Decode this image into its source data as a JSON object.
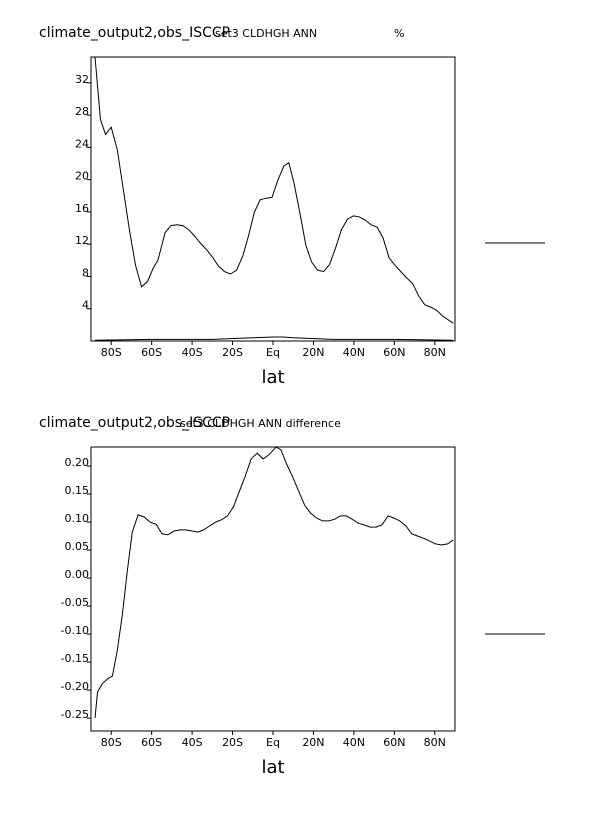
{
  "chart_data": [
    {
      "type": "line",
      "title": "climate_output2,obs_ISCCP",
      "subtitle": "set3 CLDHGH ANN",
      "units": "%",
      "x_label": "lat",
      "xlim": [
        -90,
        90
      ],
      "xticks": [
        {
          "value": -80,
          "label": "80S"
        },
        {
          "value": -60,
          "label": "60S"
        },
        {
          "value": -40,
          "label": "40S"
        },
        {
          "value": -20,
          "label": "20S"
        },
        {
          "value": 0,
          "label": "Eq"
        },
        {
          "value": 20,
          "label": "20N"
        },
        {
          "value": 40,
          "label": "40N"
        },
        {
          "value": 60,
          "label": "60N"
        },
        {
          "value": 80,
          "label": "80N"
        }
      ],
      "ylim": [
        0,
        35.2
      ],
      "yticks": [
        4,
        8,
        12,
        16,
        20,
        24,
        28,
        32
      ],
      "series": [
        {
          "color": "#000000",
          "x": [
            -88,
            -85.3,
            -82.8,
            -80,
            -77,
            -74,
            -71,
            -68,
            -65,
            -62,
            -59.3,
            -56.9,
            -53.4,
            -50.5,
            -47.5,
            -44.6,
            -41.7,
            -38.7,
            -35.8,
            -32.8,
            -29.9,
            -27,
            -24,
            -21,
            -18,
            -15,
            -12,
            -9.3,
            -6.4,
            -3.4,
            -0.5,
            2.5,
            5.4,
            7.8,
            10.3,
            13.2,
            16.2,
            19.1,
            22,
            25,
            28,
            30.9,
            33.8,
            36.8,
            39.7,
            42.6,
            45.6,
            48.5,
            51.5,
            54.4,
            57.4,
            60.3,
            63.2,
            66.2,
            69.1,
            72,
            75,
            78,
            80.9,
            83.8,
            86.8,
            89.2
          ],
          "values": [
            35.2,
            27.4,
            25.6,
            26.5,
            23.7,
            18.7,
            13.8,
            9.4,
            6.7,
            7.4,
            9.0,
            10.0,
            13.4,
            14.3,
            14.4,
            14.3,
            13.8,
            13.0,
            12.1,
            11.3,
            10.4,
            9.3,
            8.6,
            8.3,
            8.8,
            10.5,
            13.1,
            15.9,
            17.5,
            17.7,
            17.8,
            20.0,
            21.7,
            22.1,
            19.7,
            16.0,
            11.9,
            9.8,
            8.8,
            8.6,
            9.5,
            11.5,
            13.8,
            15.1,
            15.5,
            15.4,
            15.0,
            14.4,
            14.1,
            12.8,
            10.3,
            9.4,
            8.6,
            7.8,
            7.1,
            5.6,
            4.5,
            4.2,
            3.8,
            3.1,
            2.6,
            2.2
          ]
        },
        {
          "color": "#000000",
          "x": [
            -88,
            -60,
            -30,
            -10,
            0,
            5,
            10,
            30,
            60,
            89
          ],
          "values": [
            0.1,
            0.2,
            0.2,
            0.4,
            0.5,
            0.5,
            0.4,
            0.2,
            0.2,
            0.1
          ]
        }
      ]
    },
    {
      "type": "line",
      "title": "climate_output2,obs_ISCCP",
      "subtitle": "set3 CLDHGH ANN difference",
      "x_label": "lat",
      "xlim": [
        -90,
        90
      ],
      "xticks": [
        {
          "value": -80,
          "label": "80S"
        },
        {
          "value": -60,
          "label": "60S"
        },
        {
          "value": -40,
          "label": "40S"
        },
        {
          "value": -20,
          "label": "20S"
        },
        {
          "value": 0,
          "label": "Eq"
        },
        {
          "value": 20,
          "label": "20N"
        },
        {
          "value": 40,
          "label": "40N"
        },
        {
          "value": 60,
          "label": "60N"
        },
        {
          "value": 80,
          "label": "80N"
        }
      ],
      "ylim": [
        -0.273,
        0.234
      ],
      "yticks": [
        {
          "value": 0.2,
          "label": "0.20"
        },
        0.15,
        {
          "value": 0.1,
          "label": "0.10"
        },
        0.05,
        {
          "value": 0,
          "label": "0.00"
        },
        -0.05,
        {
          "value": -0.1,
          "label": "-0.10"
        },
        -0.15,
        {
          "value": -0.2,
          "label": "-0.20"
        },
        -0.25
      ],
      "series": [
        {
          "color": "#000000",
          "x": [
            -88,
            -86.8,
            -84.3,
            -81.4,
            -79.4,
            -77,
            -74.5,
            -72,
            -69.6,
            -66.7,
            -63.7,
            -60.8,
            -57.8,
            -54.9,
            -52,
            -49,
            -46,
            -43,
            -40,
            -37,
            -34.3,
            -31.4,
            -28.4,
            -25.5,
            -22.5,
            -19.6,
            -16.7,
            -13.7,
            -10.8,
            -7.8,
            -4.9,
            -2,
            1.5,
            3.9,
            6.9,
            9.8,
            12.7,
            15.7,
            18.6,
            21.6,
            24.5,
            27.5,
            30.4,
            33.3,
            36.3,
            39.2,
            42.2,
            45.1,
            48,
            51,
            53.9,
            56.9,
            59.8,
            62.7,
            65.7,
            68.6,
            71.6,
            74.5,
            77.5,
            80.4,
            83.3,
            86.3,
            89.2
          ],
          "values": [
            -0.25,
            -0.204,
            -0.188,
            -0.179,
            -0.175,
            -0.129,
            -0.066,
            0.014,
            0.082,
            0.113,
            0.109,
            0.1,
            0.096,
            0.079,
            0.077,
            0.084,
            0.086,
            0.086,
            0.084,
            0.082,
            0.086,
            0.093,
            0.1,
            0.104,
            0.111,
            0.127,
            0.154,
            0.182,
            0.213,
            0.223,
            0.213,
            0.22,
            0.234,
            0.229,
            0.202,
            0.18,
            0.155,
            0.13,
            0.116,
            0.107,
            0.102,
            0.102,
            0.105,
            0.111,
            0.111,
            0.105,
            0.098,
            0.095,
            0.091,
            0.091,
            0.095,
            0.111,
            0.107,
            0.102,
            0.093,
            0.079,
            0.075,
            0.071,
            0.066,
            0.061,
            0.059,
            0.061,
            0.068
          ]
        }
      ]
    }
  ]
}
